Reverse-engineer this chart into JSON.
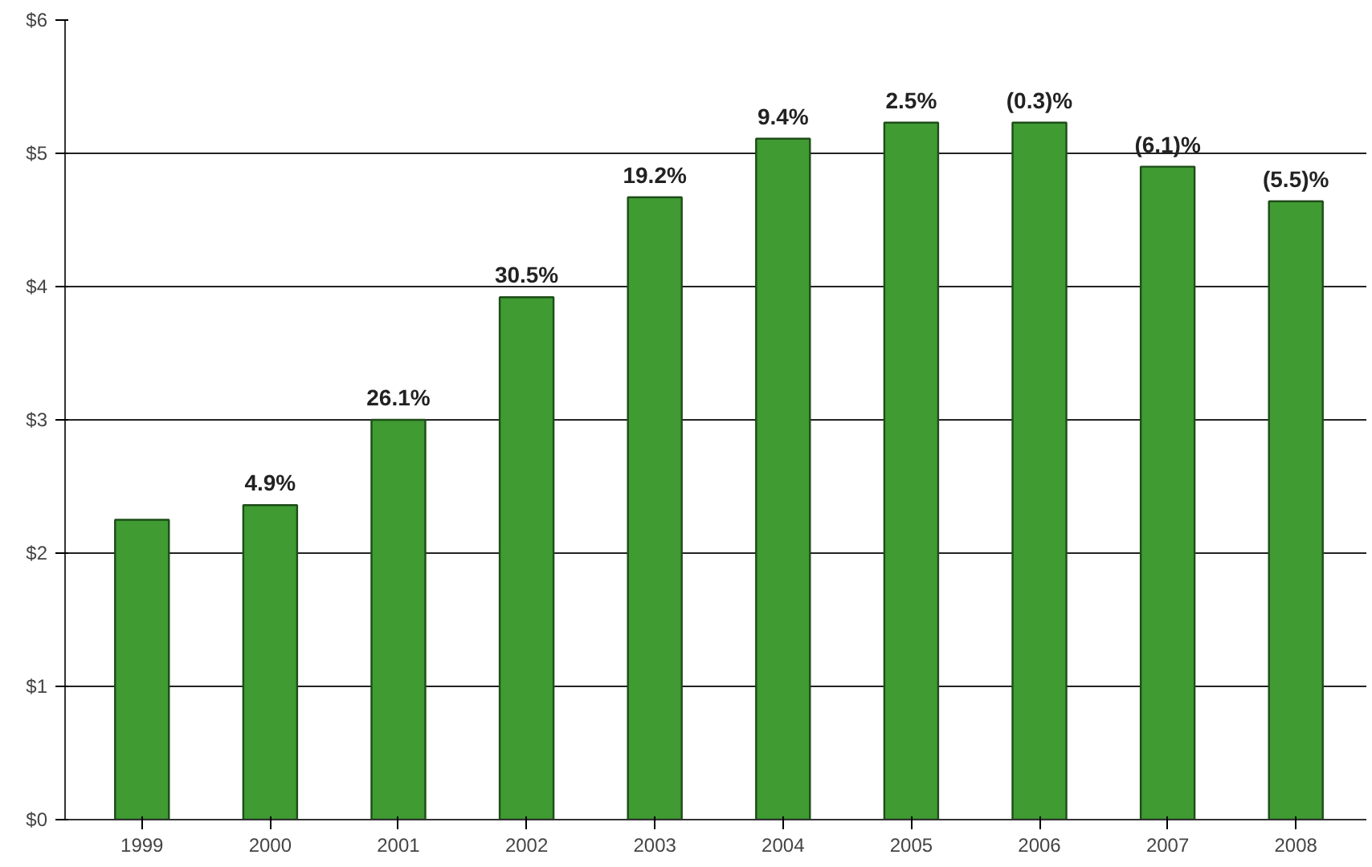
{
  "chart_data": {
    "type": "bar",
    "categories": [
      "1999",
      "2000",
      "2001",
      "2002",
      "2003",
      "2004",
      "2005",
      "2006",
      "2007",
      "2008"
    ],
    "values": [
      2.25,
      2.36,
      3.0,
      3.92,
      4.67,
      5.11,
      5.23,
      5.23,
      4.9,
      4.64
    ],
    "annotations": [
      {
        "text": "4.9%",
        "x": "2000",
        "y": 2.36
      },
      {
        "text": "26.1%",
        "x": "2001",
        "y": 3.0
      },
      {
        "text": "30.5%",
        "x": "2002",
        "y": 3.92
      },
      {
        "text": "19.2%",
        "x": "2003",
        "y": 4.67
      },
      {
        "text": "9.4%",
        "x": "2004",
        "y": 5.11
      },
      {
        "text": "2.5%",
        "x": "2005",
        "y": 5.23
      },
      {
        "text": "(0.3)%",
        "x": "2006",
        "y": 5.23
      },
      {
        "text": "(6.1)%",
        "x": "2007",
        "y": 4.9
      },
      {
        "text": "(5.5)%",
        "x": "2008",
        "y": 4.64
      }
    ],
    "color": "#3f9b32",
    "ylim": [
      0,
      6
    ],
    "yticks": [
      {
        "value": 0,
        "label": "$0"
      },
      {
        "value": 1,
        "label": "$1"
      },
      {
        "value": 2,
        "label": "$2"
      },
      {
        "value": 3,
        "label": "$3"
      },
      {
        "value": 4,
        "label": "$4"
      },
      {
        "value": 5,
        "label": "$5"
      },
      {
        "value": 6,
        "label": "$6"
      }
    ],
    "grid": "y"
  }
}
